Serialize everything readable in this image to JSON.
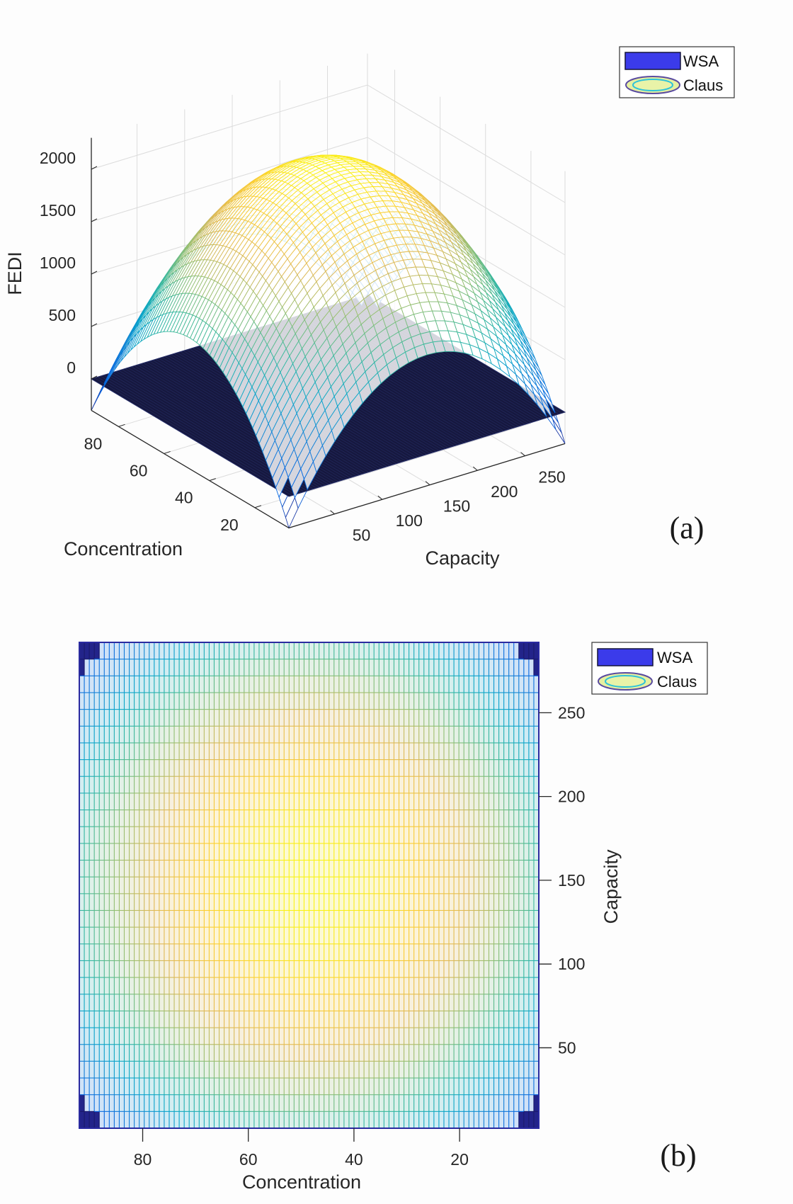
{
  "colors": {
    "wsa": "#3b3bea",
    "wsa_plane": "#16183f",
    "colormap": "parula",
    "grid": "#dcdcdc"
  },
  "chart_data": [
    {
      "type": "surface3d",
      "panel_label": "(a)",
      "xlabel": "Concentration",
      "ylabel": "Capacity",
      "zlabel": "FEDI",
      "x_ticks": [
        "80",
        "60",
        "40",
        "20"
      ],
      "y_ticks": [
        "50",
        "100",
        "150",
        "200",
        "250"
      ],
      "z_ticks": [
        "0",
        "500",
        "1000",
        "1500",
        "2000"
      ],
      "xlim": [
        5,
        92
      ],
      "ylim": [
        2,
        292
      ],
      "zlim": [
        -300,
        2300
      ],
      "grid": true,
      "legend": {
        "position": "top-right",
        "entries": [
          "WSA",
          "Claus"
        ]
      },
      "series": [
        {
          "name": "WSA",
          "kind": "plane",
          "z": 0
        },
        {
          "name": "Claus",
          "kind": "mesh",
          "peak": 2200,
          "peak_at": {
            "Concentration": 48,
            "Capacity": 147
          },
          "edge_mid_value": 950,
          "corner_value": -300
        }
      ]
    },
    {
      "type": "surface-topview",
      "panel_label": "(b)",
      "xlabel": "Concentration",
      "ylabel": "Capacity",
      "x_ticks": [
        "80",
        "60",
        "40",
        "20"
      ],
      "y_ticks": [
        "250",
        "200",
        "150",
        "100",
        "50"
      ],
      "xlim": [
        92,
        5
      ],
      "ylim": [
        2,
        292
      ],
      "legend": {
        "position": "top-right",
        "entries": [
          "WSA",
          "Claus"
        ]
      },
      "series": [
        {
          "name": "WSA",
          "kind": "plane",
          "z": 0
        },
        {
          "name": "Claus",
          "kind": "mesh"
        }
      ]
    }
  ]
}
